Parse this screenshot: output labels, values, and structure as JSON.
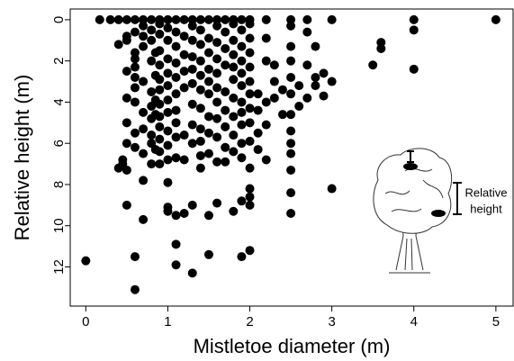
{
  "chart_data": {
    "type": "scatter",
    "x_label": "Mistletoe diameter (m)",
    "y_label": "Relative height (m)",
    "annotation": [
      "Relative",
      "height"
    ],
    "color": "#000000",
    "y_inverted": true,
    "xlim": [
      -0.19,
      5.21
    ],
    "ylim": [
      -0.52,
      13.9
    ],
    "xticks": [
      0,
      1,
      2,
      3,
      4,
      5
    ],
    "yticks": [
      0,
      2,
      4,
      6,
      8,
      10,
      12
    ],
    "x": [
      0.17,
      0.3,
      0.4,
      0.5,
      0.6,
      0.7,
      0.8,
      0.9,
      1.0,
      1.1,
      1.2,
      1.3,
      1.4,
      1.5,
      1.6,
      1.7,
      1.8,
      1.9,
      2.0,
      2.2,
      2.5,
      2.7,
      3.0,
      4.0,
      5.0,
      0,
      0.4,
      0.4,
      0.45,
      0.45,
      0.5,
      0.5,
      0.5,
      0.5,
      0.5,
      0.5,
      0.5,
      0.5,
      0.6,
      0.6,
      0.6,
      0.6,
      0.6,
      0.6,
      0.6,
      0.6,
      0.6,
      0.6,
      0.6,
      0.7,
      0.7,
      0.7,
      0.7,
      0.7,
      0.7,
      0.7,
      0.7,
      0.7,
      0.8,
      0.8,
      0.8,
      0.8,
      0.8,
      0.8,
      0.8,
      0.8,
      0.8,
      0.85,
      0.85,
      0.85,
      0.85,
      0.85,
      0.9,
      0.9,
      0.9,
      0.9,
      0.9,
      0.9,
      0.9,
      0.9,
      0.9,
      0.9,
      0.9,
      0.9,
      1.0,
      1.0,
      1.0,
      1.0,
      1.0,
      1.0,
      1.0,
      1.0,
      1.0,
      1.0,
      1.0,
      1.0,
      1.0,
      1.1,
      1.1,
      1.1,
      1.1,
      1.1,
      1.1,
      1.1,
      1.1,
      1.1,
      1.1,
      1.1,
      1.1,
      1.2,
      1.2,
      1.2,
      1.2,
      1.2,
      1.2,
      1.2,
      1.3,
      1.3,
      1.3,
      1.3,
      1.3,
      1.3,
      1.3,
      1.3,
      1.3,
      1.3,
      1.4,
      1.4,
      1.4,
      1.4,
      1.4,
      1.4,
      1.4,
      1.4,
      1.4,
      1.4,
      1.5,
      1.5,
      1.5,
      1.5,
      1.5,
      1.5,
      1.5,
      1.5,
      1.5,
      1.5,
      1.6,
      1.6,
      1.6,
      1.6,
      1.6,
      1.6,
      1.6,
      1.6,
      1.6,
      1.6,
      1.7,
      1.7,
      1.7,
      1.7,
      1.7,
      1.7,
      1.7,
      1.7,
      1.8,
      1.8,
      1.8,
      1.8,
      1.8,
      1.8,
      1.8,
      1.8,
      1.8,
      1.8,
      1.9,
      1.9,
      1.9,
      1.9,
      1.9,
      1.9,
      1.9,
      1.9,
      1.9,
      1.9,
      1.9,
      1.9,
      2.0,
      2.0,
      2.0,
      2.0,
      2.0,
      2.0,
      2.0,
      2.0,
      2.0,
      2.0,
      2.0,
      2.0,
      2.0,
      2.0,
      2.1,
      2.1,
      2.1,
      2.1,
      2.2,
      2.2,
      2.2,
      2.2,
      2.2,
      2.3,
      2.3,
      2.3,
      2.4,
      2.4,
      2.5,
      2.5,
      2.5,
      2.5,
      2.5,
      2.5,
      2.5,
      2.5,
      2.5,
      2.5,
      2.5,
      2.5,
      2.6,
      2.6,
      2.7,
      2.7,
      2.7,
      2.8,
      2.8,
      2.8,
      2.9,
      2.9,
      3.0,
      3.0,
      3.5,
      3.6,
      3.6,
      4.0,
      4.0
    ],
    "values": [
      0,
      0,
      0,
      0,
      0,
      0,
      0,
      0,
      0,
      0,
      0,
      0,
      0,
      0,
      0,
      0,
      0,
      0,
      0,
      0,
      0,
      0,
      0,
      0,
      0,
      11.7,
      1.2,
      7.2,
      7.0,
      6.8,
      0.8,
      1.0,
      2.5,
      3.8,
      5.0,
      6.0,
      7.3,
      9.0,
      0.6,
      1.6,
      1.9,
      2.3,
      2.8,
      3.3,
      4.0,
      5.5,
      6.2,
      11.5,
      13.1,
      0.3,
      0.8,
      1.3,
      3.0,
      4.5,
      5.3,
      6.5,
      7.8,
      9.7,
      0.5,
      1.0,
      2.0,
      3.5,
      4.2,
      4.8,
      5.6,
      6.0,
      7.0,
      1.6,
      2.7,
      3.9,
      4.6,
      6.3,
      0.2,
      0.7,
      1.5,
      2.2,
      2.9,
      3.4,
      4.1,
      4.7,
      5.2,
      5.8,
      6.4,
      7.0,
      0.4,
      1.0,
      1.9,
      2.6,
      3.2,
      3.9,
      4.5,
      5.4,
      6.1,
      6.8,
      7.9,
      9.1,
      9.3,
      0.6,
      1.3,
      2.1,
      2.8,
      3.6,
      4.4,
      5.0,
      5.7,
      6.7,
      9.5,
      10.9,
      11.9,
      0.8,
      1.7,
      2.5,
      3.3,
      5.6,
      6.8,
      9.4,
      0.3,
      1.0,
      1.8,
      2.4,
      3.1,
      4.1,
      5.1,
      6.0,
      9.0,
      12.3,
      0.5,
      1.2,
      2.0,
      2.7,
      3.4,
      4.3,
      5.3,
      5.9,
      6.6,
      7.2,
      0.9,
      1.6,
      2.4,
      3.0,
      3.6,
      4.7,
      5.5,
      6.5,
      9.5,
      11.4,
      0.3,
      1.1,
      1.9,
      2.6,
      3.3,
      4.0,
      4.8,
      5.7,
      6.9,
      8.9,
      0.6,
      1.4,
      2.2,
      3.5,
      4.4,
      5.2,
      6.2,
      6.9,
      0.2,
      1.0,
      1.7,
      2.3,
      2.9,
      3.8,
      4.7,
      5.6,
      6.4,
      9.3,
      0.5,
      1.3,
      2.0,
      2.6,
      3.2,
      4.0,
      4.5,
      5.1,
      6.0,
      6.7,
      8.8,
      11.5,
      0.2,
      0.9,
      1.6,
      2.3,
      3.0,
      3.6,
      4.3,
      5.0,
      5.9,
      7.2,
      8.2,
      8.6,
      9.0,
      11.2,
      3.6,
      4.4,
      5.5,
      6.3,
      0.9,
      2.0,
      4.0,
      5.1,
      6.8,
      2.2,
      3.0,
      3.8,
      3.4,
      4.6,
      0.3,
      1.3,
      2.0,
      2.8,
      3.6,
      4.6,
      5.4,
      6.0,
      6.5,
      7.3,
      8.4,
      9.4,
      3.2,
      4.2,
      0.6,
      2.2,
      3.8,
      1.3,
      2.8,
      3.2,
      2.6,
      3.7,
      3.0,
      8.2,
      2.2,
      1.1,
      1.4,
      0.5,
      2.4
    ]
  }
}
